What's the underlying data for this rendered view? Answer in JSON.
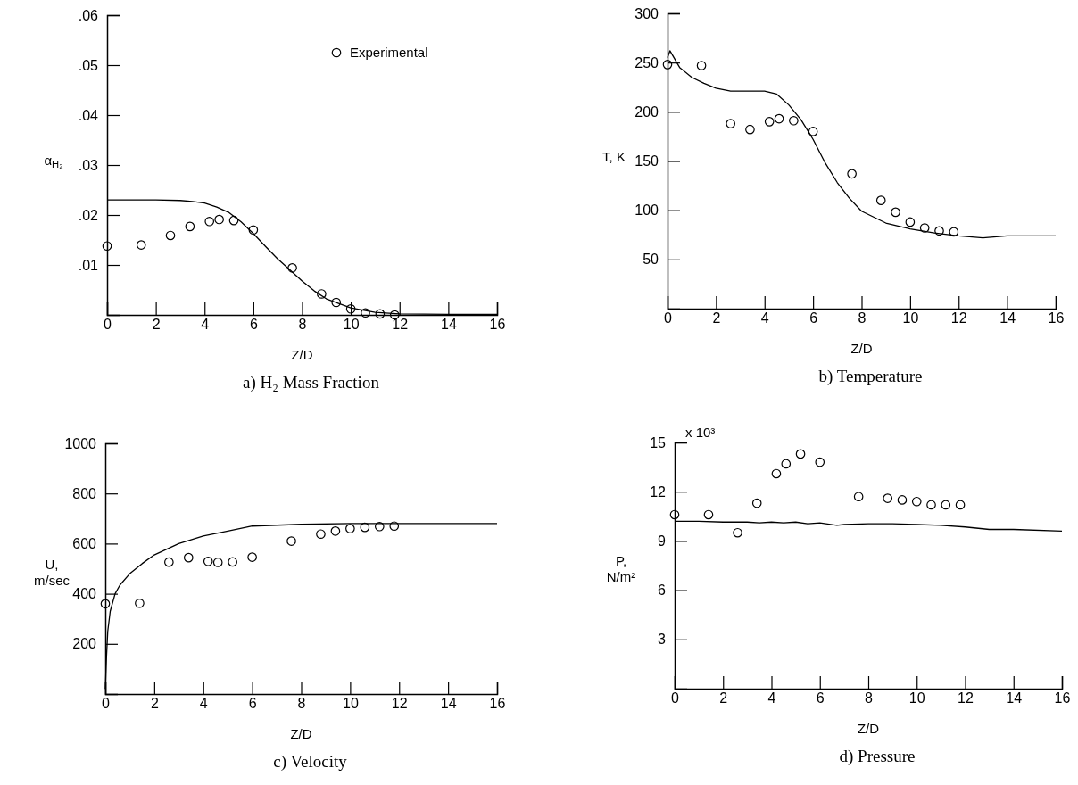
{
  "chart_data": [
    {
      "type": "line",
      "title": "a) H₂ Mass Fraction",
      "xlabel": "Z/D",
      "ylabel": "α$_{H₂}$",
      "xlim": [
        0,
        16
      ],
      "xticks": [
        0,
        2,
        4,
        6,
        8,
        10,
        12,
        14,
        16
      ],
      "ylim": [
        0,
        0.06
      ],
      "yticks": [
        {
          "value": 0.01,
          "label": ".01"
        },
        {
          "value": 0.02,
          "label": ".02"
        },
        {
          "value": 0.03,
          "label": ".03"
        },
        {
          "value": 0.04,
          "label": ".04"
        },
        {
          "value": 0.05,
          "label": ".05"
        },
        {
          "value": 0.06,
          "label": ".06"
        }
      ],
      "legend": "top right",
      "grid": false,
      "series": [
        {
          "color": "#000000",
          "x": [
            0,
            1,
            2,
            3,
            3.5,
            4,
            4.5,
            5,
            5.5,
            6,
            6.5,
            7,
            7.5,
            8,
            8.5,
            9,
            10,
            11,
            12,
            14,
            16
          ],
          "values": [
            0.023,
            0.023,
            0.023,
            0.0229,
            0.0227,
            0.0224,
            0.0216,
            0.0205,
            0.0186,
            0.0163,
            0.0137,
            0.0112,
            0.009,
            0.0068,
            0.0048,
            0.0032,
            0.0014,
            0.0005,
            0.0002,
            0.0001,
            0.0001
          ]
        },
        {
          "type": "scatter",
          "name": "Experimental",
          "color": "#000000",
          "marker": "circle",
          "x": [
            0,
            1.4,
            2.6,
            3.4,
            4.2,
            4.6,
            5.2,
            6,
            7.6,
            8.8,
            9.4,
            10,
            10.6,
            11.2,
            11.8
          ],
          "values": [
            0.0138,
            0.014,
            0.0159,
            0.0177,
            0.0187,
            0.0191,
            0.0189,
            0.017,
            0.0094,
            0.0042,
            0.0025,
            0.0012,
            0.0004,
            0.0002,
            0
          ]
        }
      ]
    },
    {
      "type": "line",
      "title": "b) Temperature",
      "xlabel": "Z/D",
      "ylabel": "T, K",
      "xlim": [
        0,
        16
      ],
      "xticks": [
        0,
        2,
        4,
        6,
        8,
        10,
        12,
        14,
        16
      ],
      "ylim": [
        0,
        300
      ],
      "yticks": [
        50,
        100,
        150,
        200,
        250,
        300
      ],
      "grid": false,
      "series": [
        {
          "color": "#000000",
          "x": [
            0,
            0.1,
            0.5,
            1,
            1.5,
            2,
            2.6,
            3,
            4,
            4.5,
            5,
            5.5,
            6,
            6.5,
            7,
            7.5,
            8,
            9,
            10,
            11,
            12,
            13,
            14,
            16
          ],
          "values": [
            255,
            262,
            245,
            235,
            229,
            224,
            221,
            221,
            221,
            218,
            207,
            192,
            172,
            148,
            128,
            112,
            99,
            87,
            81,
            77,
            74,
            72,
            74,
            74
          ]
        },
        {
          "type": "scatter",
          "color": "#000000",
          "marker": "circle",
          "x": [
            0,
            1.4,
            2.6,
            3.4,
            4.2,
            4.6,
            5.2,
            6,
            7.6,
            8.8,
            9.4,
            10,
            10.6,
            11.2,
            11.8
          ],
          "values": [
            248,
            247,
            188,
            182,
            190,
            193,
            191,
            180,
            137,
            110,
            98,
            88,
            82,
            79,
            78
          ]
        }
      ]
    },
    {
      "type": "line",
      "title": "c) Velocity",
      "xlabel": "Z/D",
      "ylabel": "U, m/sec",
      "xlim": [
        0,
        16
      ],
      "xticks": [
        0,
        2,
        4,
        6,
        8,
        10,
        12,
        14,
        16
      ],
      "ylim": [
        0,
        1000
      ],
      "yticks": [
        200,
        400,
        600,
        800,
        1000
      ],
      "grid": false,
      "series": [
        {
          "color": "#000000",
          "x": [
            0,
            0.05,
            0.1,
            0.2,
            0.4,
            0.6,
            1,
            1.5,
            2,
            3,
            4,
            5,
            6,
            8,
            10,
            12,
            16
          ],
          "values": [
            20,
            150,
            250,
            330,
            400,
            435,
            480,
            520,
            555,
            600,
            630,
            650,
            670,
            677,
            680,
            680,
            680
          ]
        },
        {
          "type": "scatter",
          "color": "#000000",
          "marker": "circle",
          "x": [
            0,
            1.4,
            2.6,
            3.4,
            4.2,
            4.6,
            5.2,
            6,
            7.6,
            8.8,
            9.4,
            10,
            10.6,
            11.2,
            11.8
          ],
          "values": [
            360,
            362,
            526,
            544,
            529,
            525,
            527,
            546,
            610,
            638,
            650,
            660,
            665,
            668,
            670
          ]
        }
      ]
    },
    {
      "type": "line",
      "title": "d) Pressure",
      "xlabel": "Z/D",
      "ylabel": "P, N/m²",
      "annotations": [
        "x 10³"
      ],
      "xlim": [
        0,
        16
      ],
      "xticks": [
        0,
        2,
        4,
        6,
        8,
        10,
        12,
        14,
        16
      ],
      "ylim": [
        0,
        15
      ],
      "yticks": [
        3,
        6,
        9,
        12,
        15
      ],
      "grid": false,
      "series": [
        {
          "color": "#000000",
          "x": [
            0,
            1,
            2,
            3,
            3.5,
            4,
            4.5,
            5,
            5.5,
            6,
            6.7,
            7,
            8,
            9,
            10,
            11,
            12,
            13,
            14,
            16
          ],
          "values": [
            10.2,
            10.2,
            10.15,
            10.15,
            10.1,
            10.15,
            10.1,
            10.15,
            10.05,
            10.1,
            9.95,
            10.0,
            10.05,
            10.05,
            10.0,
            9.95,
            9.85,
            9.7,
            9.7,
            9.6
          ]
        },
        {
          "type": "scatter",
          "color": "#000000",
          "marker": "circle",
          "x": [
            0,
            1.4,
            2.6,
            3.4,
            4.2,
            4.6,
            5.2,
            6,
            7.6,
            8.8,
            9.4,
            10,
            10.6,
            11.2,
            11.8
          ],
          "values": [
            10.6,
            10.6,
            9.5,
            11.3,
            13.1,
            13.7,
            14.3,
            13.8,
            11.7,
            11.6,
            11.5,
            11.4,
            11.2,
            11.2,
            11.2
          ]
        }
      ]
    }
  ]
}
